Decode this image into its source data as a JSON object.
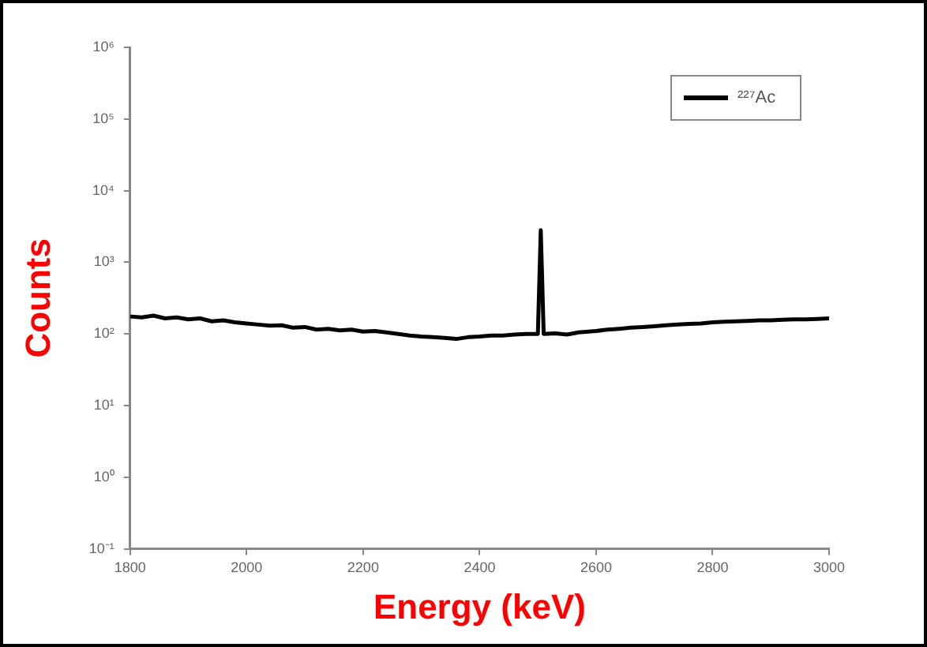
{
  "chart_data": {
    "type": "line",
    "xlabel": "Energy (keV)",
    "ylabel": "Counts",
    "log": "y",
    "grid": false,
    "legend": "top right",
    "marker": "none",
    "line_style": "solid",
    "xlim": [
      1800,
      3000
    ],
    "xticks": [
      1800,
      2000,
      2200,
      2400,
      2600,
      2800,
      3000
    ],
    "ylim": [
      0.1,
      1000000
    ],
    "yticks": [
      {
        "value": 0.1,
        "label": "10⁻¹"
      },
      {
        "value": 1,
        "label": "10⁰"
      },
      {
        "value": 10,
        "label": "10¹"
      },
      {
        "value": 100,
        "label": "10²"
      },
      {
        "value": 1000,
        "label": "10³"
      },
      {
        "value": 10000,
        "label": "10⁴"
      },
      {
        "value": 100000,
        "label": "10⁵"
      },
      {
        "value": 1000000,
        "label": "10⁶"
      }
    ],
    "series": [
      {
        "name": "²²⁷Ac",
        "color": "#000000",
        "x": [
          1800,
          1820,
          1840,
          1860,
          1880,
          1900,
          1920,
          1940,
          1960,
          1980,
          2000,
          2020,
          2040,
          2060,
          2080,
          2100,
          2120,
          2140,
          2160,
          2180,
          2200,
          2220,
          2240,
          2260,
          2280,
          2300,
          2320,
          2340,
          2360,
          2380,
          2400,
          2420,
          2440,
          2460,
          2480,
          2500,
          2505,
          2510,
          2530,
          2550,
          2570,
          2600,
          2620,
          2640,
          2660,
          2680,
          2700,
          2720,
          2740,
          2760,
          2780,
          2800,
          2820,
          2840,
          2860,
          2880,
          2900,
          2920,
          2940,
          2960,
          2980,
          3000
        ],
        "values": [
          175,
          170,
          180,
          165,
          170,
          160,
          165,
          150,
          155,
          145,
          140,
          135,
          130,
          132,
          122,
          125,
          115,
          118,
          112,
          115,
          108,
          110,
          105,
          100,
          95,
          92,
          90,
          88,
          85,
          90,
          92,
          95,
          95,
          98,
          100,
          100,
          2800,
          100,
          102,
          98,
          105,
          110,
          115,
          118,
          122,
          125,
          128,
          132,
          135,
          138,
          140,
          145,
          148,
          150,
          152,
          155,
          155,
          158,
          160,
          160,
          162,
          165
        ]
      }
    ]
  }
}
